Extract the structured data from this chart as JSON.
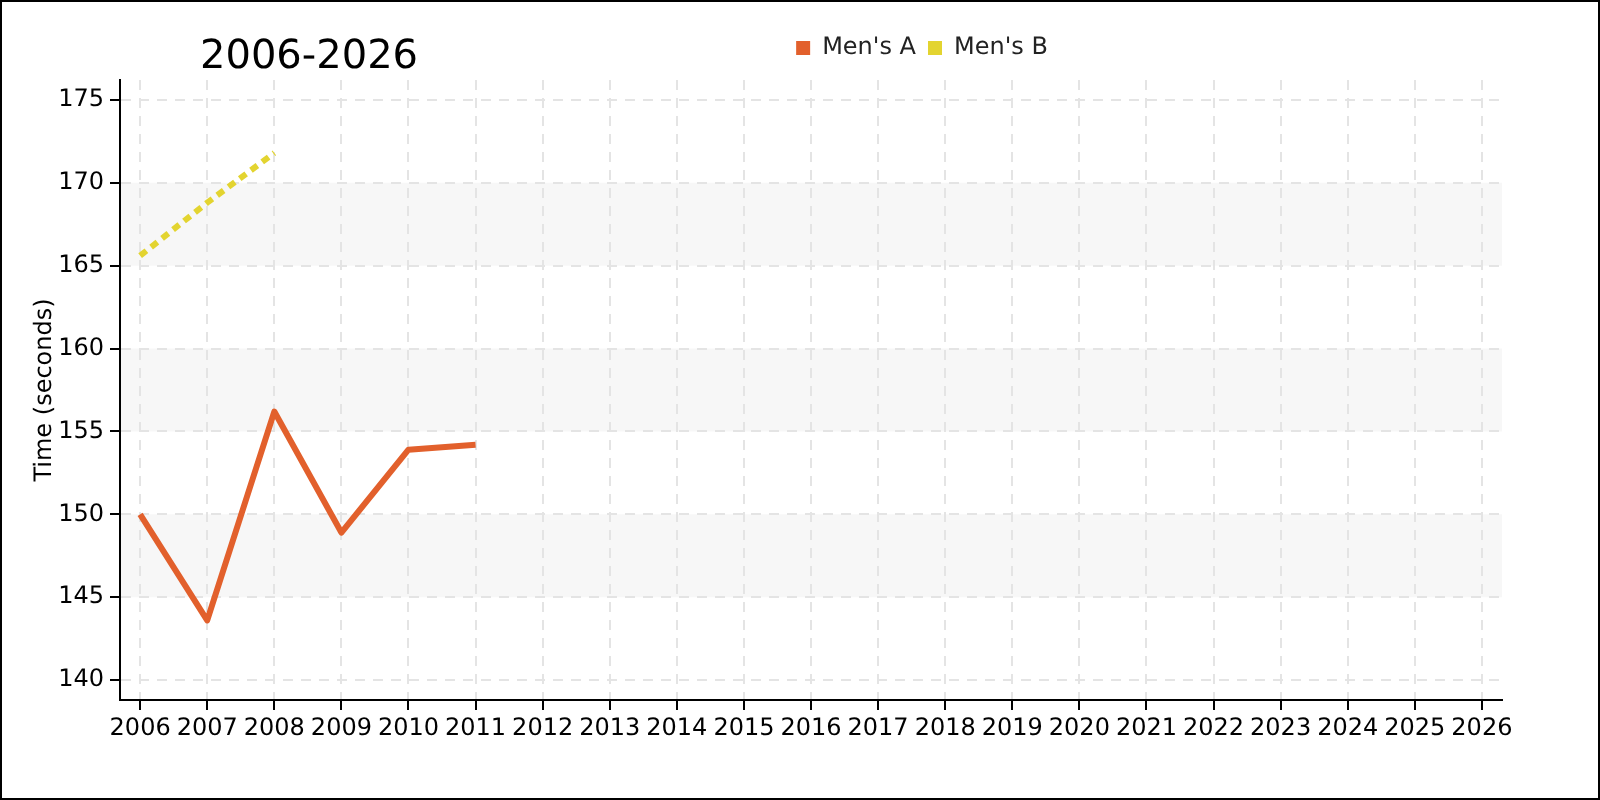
{
  "chart_data": {
    "type": "line",
    "title": "2006-2026",
    "ylabel": "Time (seconds)",
    "series": [
      {
        "name": "Men's A",
        "color": "#e2602c",
        "x": [
          2006,
          2007,
          2008,
          2009,
          2010,
          2011
        ],
        "values": [
          150.0,
          143.6,
          156.2,
          148.9,
          153.9,
          154.2
        ],
        "line_style": "solid"
      },
      {
        "name": "Men's B",
        "color": "#e3d430",
        "x": [
          2006,
          2007,
          2008
        ],
        "values": [
          165.6,
          168.8,
          171.8
        ],
        "line_style": "dotted"
      }
    ],
    "xlim": [
      2005.7,
      2026.3
    ],
    "xticks": [
      2006,
      2007,
      2008,
      2009,
      2010,
      2011,
      2012,
      2013,
      2014,
      2015,
      2016,
      2017,
      2018,
      2019,
      2020,
      2021,
      2022,
      2023,
      2024,
      2025,
      2026
    ],
    "ylim": [
      138.8,
      176.2
    ],
    "yticks": [
      140,
      145,
      150,
      155,
      160,
      165,
      170,
      175
    ],
    "grid": true,
    "legend": "top",
    "bands": [
      {
        "axis": "y",
        "from": 145,
        "to": 150,
        "color": "#f7f7f7"
      },
      {
        "axis": "y",
        "from": 155,
        "to": 160,
        "color": "#f7f7f7"
      },
      {
        "axis": "y",
        "from": 165,
        "to": 170,
        "color": "#f7f7f7"
      }
    ]
  }
}
